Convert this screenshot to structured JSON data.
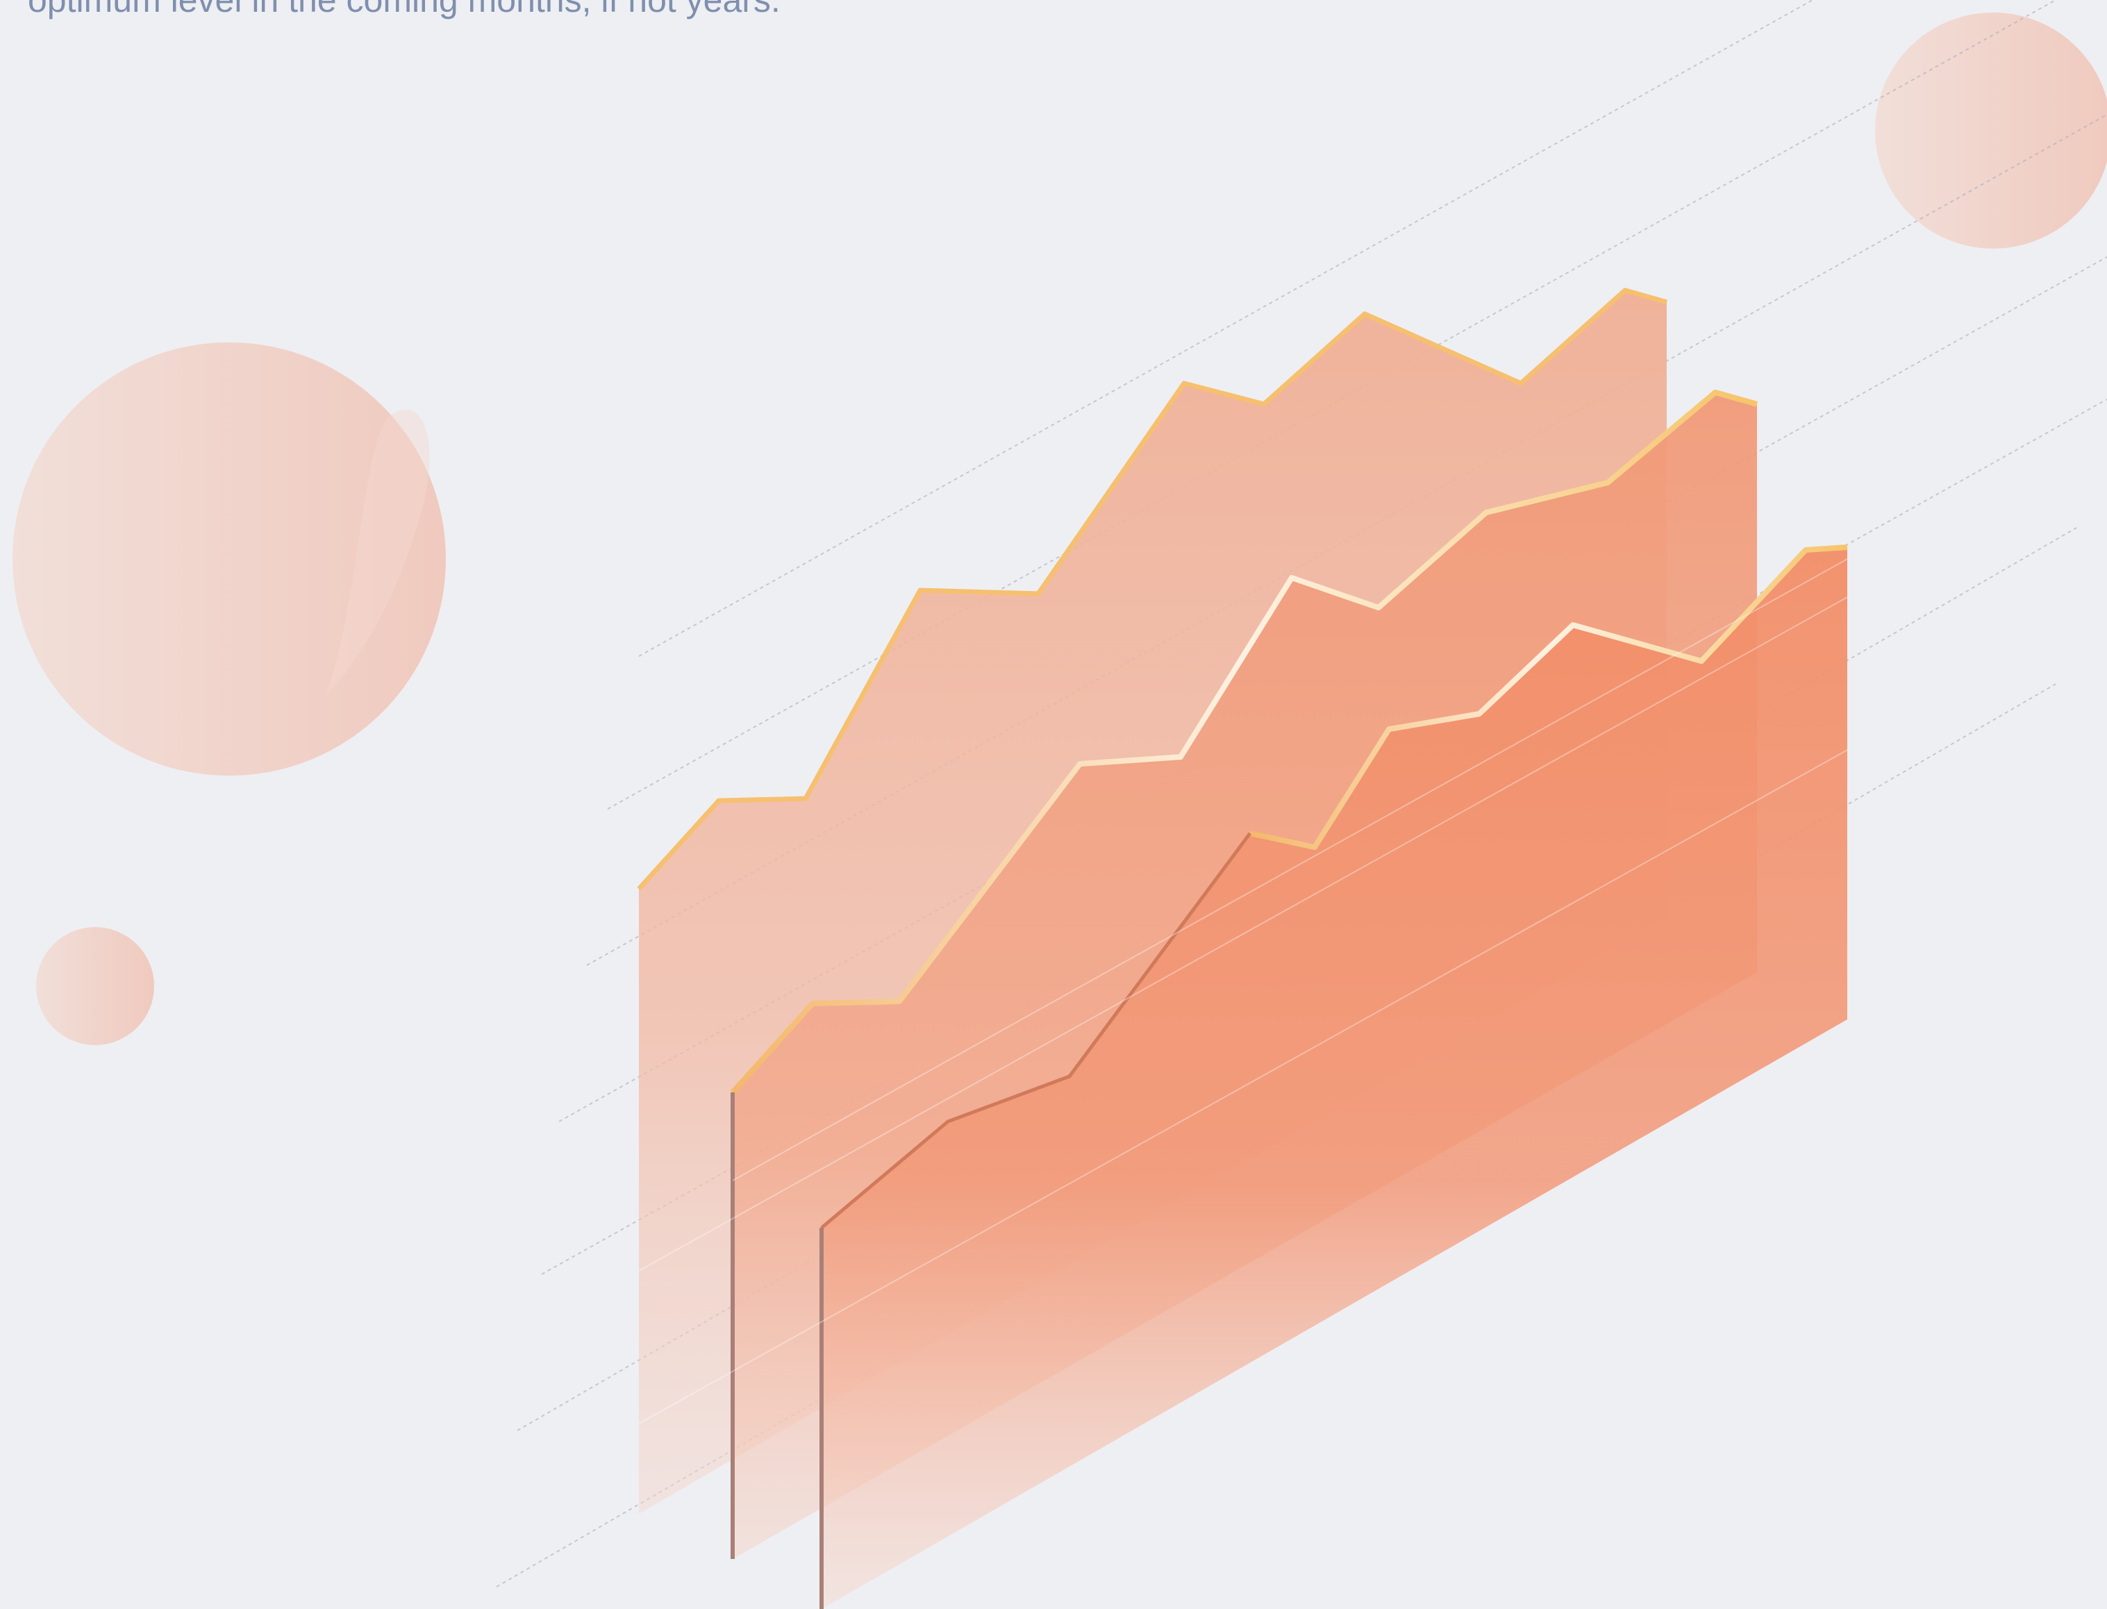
{
  "caption": {
    "text": "optimum level in the coming months, if not years."
  },
  "illustration": {
    "subject": "isometric stacked area chart illustration",
    "layer_count": 3,
    "colors": {
      "background": "#EEEFF3",
      "back_layer": "#F0AF95",
      "middle_layer": "#F19A78",
      "front_layer": "#F28E68",
      "ridge_highlight": "#F8C46C",
      "circle": "#F2CABD",
      "text": "#7F8FAE"
    }
  }
}
